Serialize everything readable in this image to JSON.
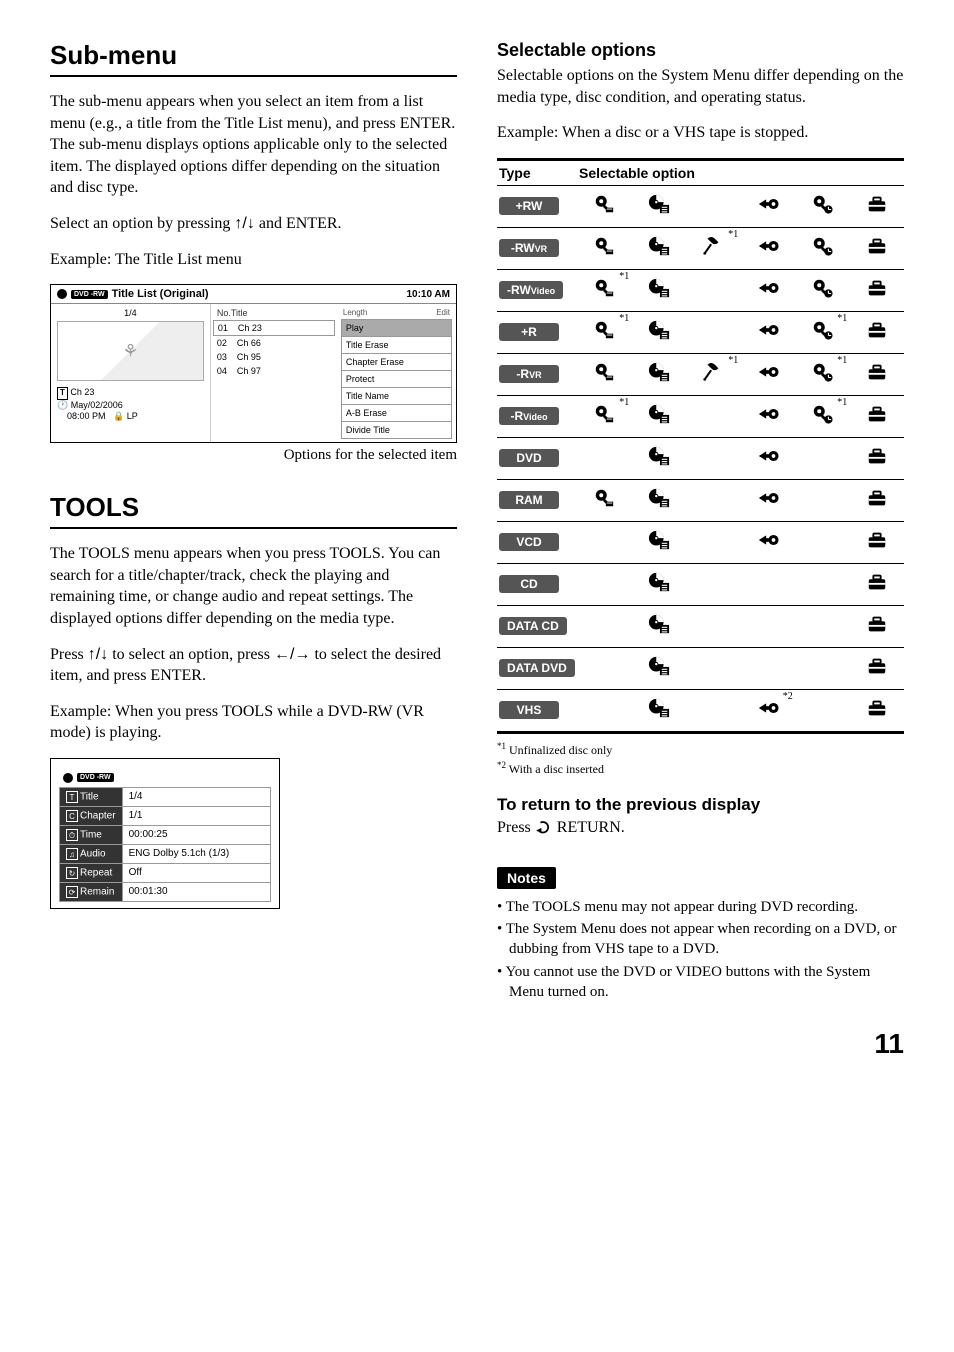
{
  "page_number": "11",
  "left": {
    "section1_title": "Sub-menu",
    "section1_body": "The sub-menu appears when you select an item from a list menu (e.g., a title from the Title List menu), and press ENTER. The sub-menu displays options applicable only to the selected item. The displayed options differ depending on the situation and disc type.",
    "section1_select": "Select an option by pressing ",
    "section1_select_end": " and ENTER.",
    "example1": "Example: The Title List menu",
    "title_list": {
      "badge": "DVD -RW",
      "title": "Title List (Original)",
      "time": "10:10 AM",
      "count": "1/4",
      "no_head": "No.",
      "title_head": "Title",
      "length_head": "Length",
      "edit_head": "Edit",
      "rows": [
        {
          "no": "01",
          "title": "Ch 23"
        },
        {
          "no": "02",
          "title": "Ch 66"
        },
        {
          "no": "03",
          "title": "Ch 95"
        },
        {
          "no": "04",
          "title": "Ch 97"
        }
      ],
      "meta_title_icon": "T",
      "meta_title": "Ch 23",
      "meta_date": "May/02/2006",
      "meta_time": "08:00   PM",
      "meta_mode": "LP",
      "submenu": [
        "Play",
        "Title Erase",
        "Chapter Erase",
        "Protect",
        "Title Name",
        "A-B Erase",
        "Divide Title"
      ]
    },
    "caption1": "Options for the selected item",
    "section2_title": "TOOLS",
    "section2_body": "The TOOLS menu appears when you press TOOLS. You can search for a title/chapter/track, check the playing and remaining time, or change audio and repeat settings. The displayed options differ depending on the media type.",
    "section2_press_a": "Press ",
    "section2_press_b": " to select an option, press ",
    "section2_press_c": " to select the desired item, and press ENTER.",
    "example2": "Example: When you press TOOLS while a DVD-RW (VR mode) is playing.",
    "tools": {
      "badge": "DVD -RW",
      "rows": [
        {
          "label": "Title",
          "value": "1/4"
        },
        {
          "label": "Chapter",
          "value": "1/1"
        },
        {
          "label": "Time",
          "value": "00:00:25"
        },
        {
          "label": "Audio",
          "value": "ENG Dolby 5.1ch (1/3)"
        },
        {
          "label": "Repeat",
          "value": "Off"
        },
        {
          "label": "Remain",
          "value": "00:01:30"
        }
      ]
    }
  },
  "right": {
    "sel_title": "Selectable options",
    "sel_body": "Selectable options on the System Menu differ depending on the media type, disc condition, and operating status.",
    "sel_example": "Example: When a disc or a VHS tape is stopped.",
    "col_type": "Type",
    "col_opt": "Selectable option",
    "types": [
      {
        "label": "+RW",
        "icons": [
          1,
          1,
          0,
          0,
          1,
          1,
          1
        ]
      },
      {
        "label": "-RWVR",
        "sub": "VR",
        "icons": [
          1,
          1,
          "*1",
          0,
          1,
          1,
          1
        ],
        "mic": true
      },
      {
        "label": "-RWVideo",
        "sub": "Video",
        "icons": [
          "*1",
          1,
          0,
          0,
          1,
          1,
          1
        ],
        "sup_on": 0
      },
      {
        "label": "+R",
        "icons": [
          "*1",
          1,
          0,
          0,
          1,
          "*1",
          1
        ],
        "sup_on": 0,
        "sup_on2": 5
      },
      {
        "label": "-RVR",
        "sub": "VR",
        "icons": [
          1,
          1,
          "*1",
          0,
          1,
          "*1",
          1
        ],
        "mic": true,
        "sup_on2": 5
      },
      {
        "label": "-RVideo",
        "sub": "Video",
        "icons": [
          "*1",
          1,
          0,
          0,
          1,
          "*1",
          1
        ],
        "sup_on": 0,
        "sup_on2": 5
      },
      {
        "label": "DVD",
        "icons": [
          0,
          1,
          0,
          0,
          1,
          0,
          1
        ]
      },
      {
        "label": "RAM",
        "icons": [
          1,
          1,
          0,
          0,
          1,
          0,
          1
        ]
      },
      {
        "label": "VCD",
        "icons": [
          0,
          1,
          0,
          0,
          1,
          0,
          1
        ]
      },
      {
        "label": "CD",
        "icons": [
          0,
          1,
          0,
          0,
          0,
          0,
          1
        ]
      },
      {
        "label": "DATA CD",
        "icons": [
          0,
          1,
          0,
          0,
          0,
          0,
          1
        ]
      },
      {
        "label": "DATA DVD",
        "icons": [
          0,
          1,
          0,
          0,
          0,
          0,
          1
        ]
      },
      {
        "label": "VHS",
        "icons": [
          0,
          1,
          0,
          0,
          "*2",
          0,
          1
        ]
      }
    ],
    "footnote1_sup": "*1",
    "footnote1": " Unfinalized disc only",
    "footnote2_sup": "*2",
    "footnote2": " With a disc inserted",
    "return_title": "To return to the previous display",
    "return_body_a": "Press ",
    "return_body_b": " RETURN.",
    "notes_badge": "Notes",
    "notes": [
      "The TOOLS menu may not appear during DVD recording.",
      "The System Menu does not appear when recording on a DVD, or dubbing from VHS tape to a DVD.",
      "You cannot use the DVD or VIDEO buttons with the System Menu turned on."
    ]
  },
  "icons_svg": {
    "mag_rec": "<svg viewBox='0 0 24 24'><circle cx='9' cy='9' r='6' fill='#000'/><rect x='13' y='13' width='7' height='3' transform='rotate(45 13 13)' fill='#000'/><circle cx='9' cy='9' r='2.2' fill='#fff'/><rect x='14' y='16' width='8' height='5' fill='#000'/><rect x='15' y='17' width='6' height='1' fill='#fff'/></svg>",
    "disc_list": "<svg viewBox='0 0 24 24'><circle cx='9' cy='10' r='8' fill='#000'/><path d='M9 2 A8 8 0 0 1 17 10 L9 10 Z' fill='#fff'/><circle cx='9' cy='10' r='1.8' fill='#fff'/><circle cx='9' cy='10' r='1.8' stroke='#000' fill='none'/><rect x='13' y='13' width='10' height='9' fill='#000'/><rect x='15' y='15' width='6' height='1.2' fill='#fff'/><rect x='15' y='17.5' width='6' height='1.2' fill='#fff'/><rect x='15' y='20' width='6' height='1.2' fill='#fff'/></svg>",
    "mic": "<svg viewBox='0 0 24 24'><path d='M6 4 Q10 0 14 4 L18 8 Q14 12 10 8 Z' fill='#000'/><line x1='10' y1='10' x2='3' y2='20' stroke='#000' stroke-width='2.2'/><circle cx='3' cy='20' r='1.5' fill='#000'/></svg>",
    "tape_arrow": "<svg viewBox='0 0 24 24'><circle cx='18' cy='12' r='5.5' fill='#000'/><circle cx='18' cy='12' r='2' fill='#fff'/><polygon points='2,12 10,7 10,17' fill='#000'/><rect x='9' y='10' width='4' height='4' fill='#000'/></svg>",
    "mag_timer": "<svg viewBox='0 0 24 24'><circle cx='9' cy='9' r='6' fill='#000'/><rect x='13' y='13' width='7' height='3' transform='rotate(45 13 13)' fill='#000'/><circle cx='9' cy='9' r='2.2' fill='#fff'/><circle cx='19' cy='18' r='4.5' fill='#000'/><line x1='19' y1='18' x2='19' y2='15' stroke='#fff' stroke-width='1.2'/><line x1='19' y1='18' x2='22' y2='18' stroke='#fff' stroke-width='1.2'/></svg>",
    "toolbox": "<svg viewBox='0 0 24 24'><rect x='3' y='9' width='18' height='11' rx='2' fill='#000'/><rect x='3' y='13' width='18' height='2' fill='#fff'/><rect x='8' y='5' width='8' height='4' rx='1' fill='none' stroke='#000' stroke-width='2'/></svg>",
    "return": "<svg viewBox='0 0 20 16' style='display:inline;vertical-align:-2px;width:18px;height:14px'><path d='M6 3 A6 6 0 1 1 4 12' fill='none' stroke='#000' stroke-width='2'/><polygon points='1,12 7,9 7,15' fill='#000'/></svg>"
  }
}
